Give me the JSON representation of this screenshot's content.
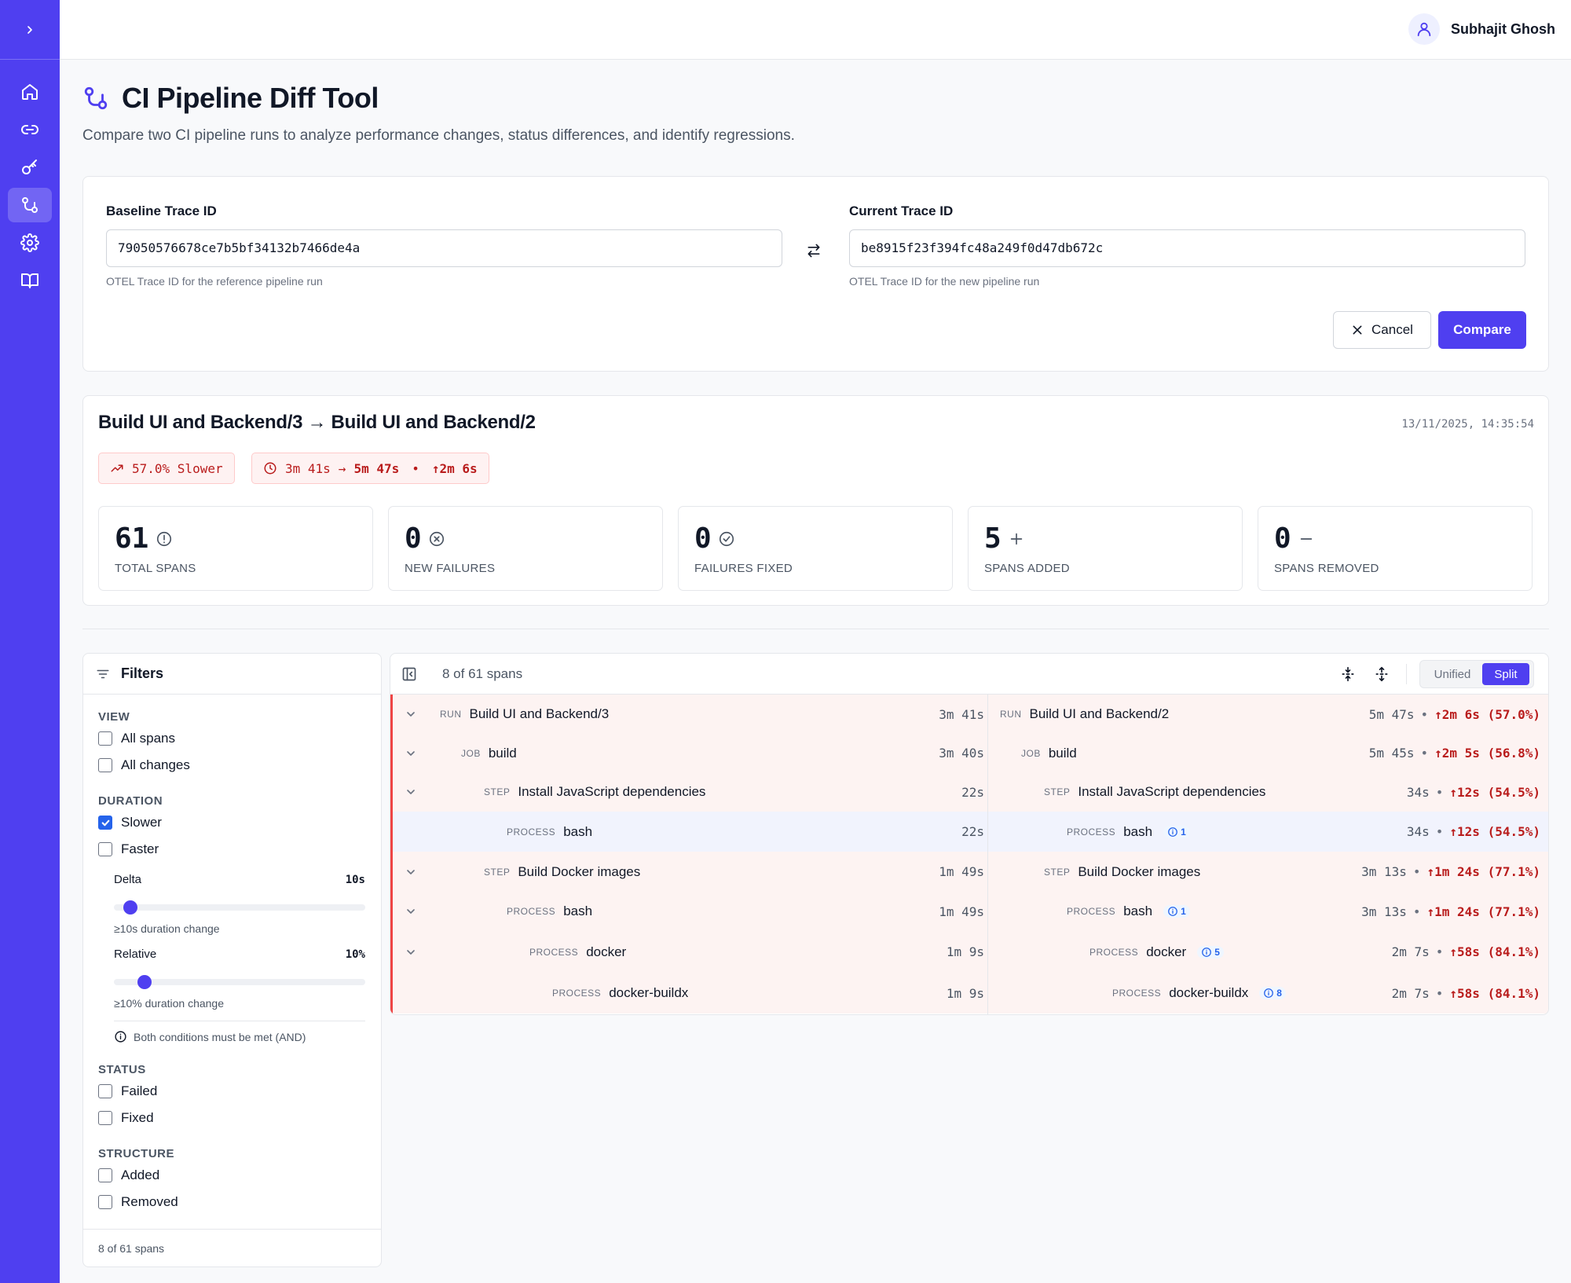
{
  "user": {
    "name": "Subhajit Ghosh"
  },
  "page": {
    "title": "CI Pipeline Diff Tool",
    "subtitle": "Compare two CI pipeline runs to analyze performance changes, status differences, and identify regressions."
  },
  "compare": {
    "baseline_label": "Baseline Trace ID",
    "baseline_value": "79050576678ce7b5bf34132b7466de4a",
    "baseline_help": "OTEL Trace ID for the reference pipeline run",
    "current_label": "Current Trace ID",
    "current_value": "be8915f23f394fc48a249f0d47db672c",
    "current_help": "OTEL Trace ID for the new pipeline run",
    "cancel_label": "Cancel",
    "compare_label": "Compare"
  },
  "summary": {
    "title": "Build UI and Backend/3 → Build UI and Backend/2",
    "timestamp": "13/11/2025, 14:35:54",
    "slower_badge": "57.0% Slower",
    "duration_from": "3m 41s",
    "duration_arrow": "→",
    "duration_to": "5m 47s",
    "duration_sep": "•",
    "duration_delta": "↑2m 6s",
    "stats": [
      {
        "value": "61",
        "label": "TOTAL SPANS",
        "icon": "info-circle-icon"
      },
      {
        "value": "0",
        "label": "NEW FAILURES",
        "icon": "x-circle-icon"
      },
      {
        "value": "0",
        "label": "FAILURES FIXED",
        "icon": "check-circle-icon"
      },
      {
        "value": "5",
        "label": "SPANS ADDED",
        "icon": "plus-icon"
      },
      {
        "value": "0",
        "label": "SPANS REMOVED",
        "icon": "minus-icon"
      }
    ]
  },
  "filters": {
    "title": "Filters",
    "view_title": "VIEW",
    "all_spans": "All spans",
    "all_changes": "All changes",
    "duration_title": "DURATION",
    "slower": "Slower",
    "slower_checked": true,
    "faster": "Faster",
    "delta_label": "Delta",
    "delta_value": "10s",
    "delta_level": 0.04,
    "delta_hint": "≥10s duration change",
    "relative_label": "Relative",
    "relative_value": "10%",
    "relative_level": 0.1,
    "relative_hint": "≥10% duration change",
    "and_note": "Both conditions must be met (AND)",
    "status_title": "STATUS",
    "failed": "Failed",
    "fixed": "Fixed",
    "structure_title": "STRUCTURE",
    "added": "Added",
    "removed": "Removed",
    "footer": "8 of 61 spans"
  },
  "diff": {
    "span_count": "8 of 61 spans",
    "unified_label": "Unified",
    "split_label": "Split",
    "rows": [
      {
        "kind": "RUN",
        "left_name": "Build UI and Backend/3",
        "left_dur": "3m 41s",
        "right_name": "Build UI and Backend/2",
        "right_dur": "5m 47s",
        "delta": "↑2m 6s (57.0%)",
        "badge": ""
      },
      {
        "kind": "JOB",
        "left_name": "build",
        "left_dur": "3m 40s",
        "right_name": "build",
        "right_dur": "5m 45s",
        "delta": "↑2m 5s (56.8%)",
        "badge": ""
      },
      {
        "kind": "STEP",
        "left_name": "Install JavaScript dependencies",
        "left_dur": "22s",
        "right_name": "Install JavaScript dependencies",
        "right_dur": "34s",
        "delta": "↑12s (54.5%)",
        "badge": ""
      },
      {
        "kind": "PROCESS",
        "left_name": "bash",
        "left_dur": "22s",
        "right_name": "bash",
        "right_dur": "34s",
        "delta": "↑12s (54.5%)",
        "badge": "1"
      },
      {
        "kind": "STEP",
        "left_name": "Build Docker images",
        "left_dur": "1m 49s",
        "right_name": "Build Docker images",
        "right_dur": "3m 13s",
        "delta": "↑1m 24s (77.1%)",
        "badge": ""
      },
      {
        "kind": "PROCESS",
        "left_name": "bash",
        "left_dur": "1m 49s",
        "right_name": "bash",
        "right_dur": "3m 13s",
        "delta": "↑1m 24s (77.1%)",
        "badge": "1"
      },
      {
        "kind": "PROCESS",
        "left_name": "docker",
        "left_dur": "1m 9s",
        "right_name": "docker",
        "right_dur": "2m 7s",
        "delta": "↑58s (84.1%)",
        "badge": "5"
      },
      {
        "kind": "PROCESS",
        "left_name": "docker-buildx",
        "left_dur": "1m 9s",
        "right_name": "docker-buildx",
        "right_dur": "2m 7s",
        "delta": "↑58s (84.1%)",
        "badge": "8"
      }
    ]
  },
  "colors": {
    "accent": "#4f3ff0",
    "regression": "#b91c1c",
    "row_bg": "#fdf3f2"
  }
}
